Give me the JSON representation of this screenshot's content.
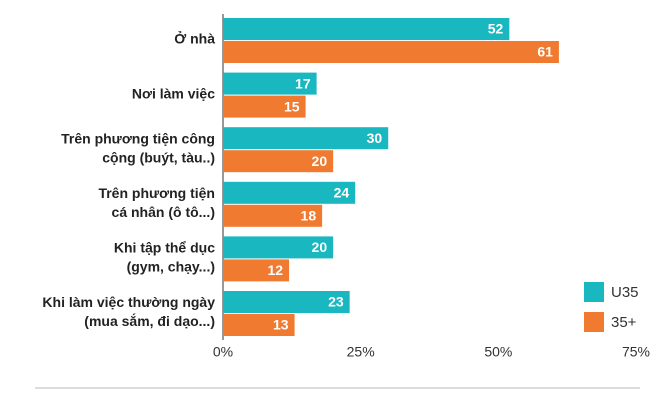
{
  "chart_data": {
    "type": "bar",
    "orientation": "horizontal",
    "categories": [
      [
        "Ở nhà"
      ],
      [
        "Nơi làm việc"
      ],
      [
        "Trên phương tiện công",
        "cộng (buýt, tàu..)"
      ],
      [
        "Trên phương tiện",
        "cá nhân (ô tô...)"
      ],
      [
        "Khi tập thể dục",
        "(gym, chạy...)"
      ],
      [
        "Khi làm việc thường ngày",
        "(mua sắm, đi dạo...)"
      ]
    ],
    "series": [
      {
        "name": "U35",
        "color": "#19b7c0",
        "values": [
          52,
          17,
          30,
          24,
          20,
          23
        ]
      },
      {
        "name": "35+",
        "color": "#f07a30",
        "values": [
          61,
          15,
          20,
          18,
          12,
          13
        ]
      }
    ],
    "xlim": [
      0,
      75
    ],
    "xticks": [
      {
        "value": 0,
        "label": "0%"
      },
      {
        "value": 25,
        "label": "25%"
      },
      {
        "value": 50,
        "label": "50%"
      },
      {
        "value": 75,
        "label": "75%"
      }
    ],
    "legend": "lower right"
  }
}
